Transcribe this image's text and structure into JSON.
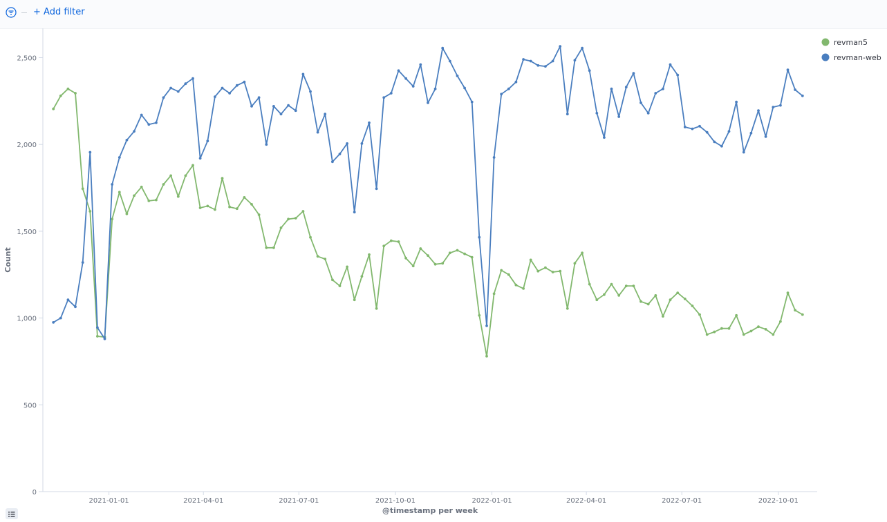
{
  "filter_bar": {
    "add_filter_label": "+ Add filter"
  },
  "chart_data": {
    "type": "line",
    "xlabel": "@timestamp per week",
    "ylabel": "Count",
    "ylim": [
      0,
      2500
    ],
    "yticks": [
      0,
      500,
      1000,
      1500,
      2000,
      2500
    ],
    "ytick_labels": [
      "0",
      "500",
      "1,000",
      "1,500",
      "2,000",
      "2,500"
    ],
    "xticks": [
      "2021-01-01",
      "2021-04-01",
      "2021-07-01",
      "2021-10-01",
      "2022-01-01",
      "2022-04-01",
      "2022-07-01",
      "2022-10-01"
    ],
    "x_start": "2020-11-09",
    "x_step_days": 7,
    "legend_position": "top-right",
    "grid": false,
    "series": [
      {
        "name": "revman5",
        "color": "#82b86e",
        "values": [
          2205,
          2280,
          2320,
          2295,
          1745,
          1615,
          895,
          890,
          1570,
          1725,
          1600,
          1705,
          1755,
          1675,
          1680,
          1770,
          1820,
          1700,
          1820,
          1880,
          1635,
          1645,
          1625,
          1805,
          1640,
          1630,
          1695,
          1655,
          1595,
          1405,
          1405,
          1520,
          1570,
          1575,
          1615,
          1465,
          1355,
          1340,
          1220,
          1185,
          1295,
          1105,
          1240,
          1365,
          1055,
          1415,
          1445,
          1440,
          1345,
          1300,
          1400,
          1360,
          1310,
          1315,
          1375,
          1390,
          1370,
          1350,
          1015,
          780,
          1140,
          1275,
          1250,
          1190,
          1170,
          1335,
          1270,
          1290,
          1265,
          1270,
          1055,
          1315,
          1375,
          1195,
          1105,
          1135,
          1195,
          1130,
          1185,
          1185,
          1095,
          1080,
          1130,
          1010,
          1105,
          1145,
          1110,
          1070,
          1020,
          905,
          920,
          940,
          940,
          1015,
          905,
          925,
          950,
          935,
          905,
          980,
          1145,
          1045,
          1020
        ]
      },
      {
        "name": "revman-web",
        "color": "#4a7ebf",
        "values": [
          975,
          1000,
          1105,
          1065,
          1320,
          1955,
          945,
          880,
          1770,
          1925,
          2025,
          2075,
          2170,
          2115,
          2125,
          2270,
          2325,
          2305,
          2350,
          2380,
          1920,
          2020,
          2275,
          2325,
          2295,
          2340,
          2360,
          2220,
          2270,
          2000,
          2220,
          2175,
          2225,
          2195,
          2405,
          2305,
          2070,
          2175,
          1900,
          1945,
          2005,
          1610,
          2005,
          2125,
          1745,
          2270,
          2295,
          2425,
          2380,
          2335,
          2460,
          2240,
          2320,
          2555,
          2480,
          2395,
          2325,
          2245,
          1465,
          955,
          1925,
          2290,
          2320,
          2360,
          2490,
          2480,
          2455,
          2450,
          2480,
          2565,
          2175,
          2485,
          2555,
          2425,
          2180,
          2040,
          2320,
          2160,
          2330,
          2410,
          2240,
          2180,
          2295,
          2320,
          2460,
          2400,
          2100,
          2090,
          2105,
          2070,
          2015,
          1990,
          2075,
          2245,
          1955,
          2065,
          2195,
          2045,
          2215,
          2225,
          2430,
          2315,
          2280
        ]
      }
    ]
  }
}
